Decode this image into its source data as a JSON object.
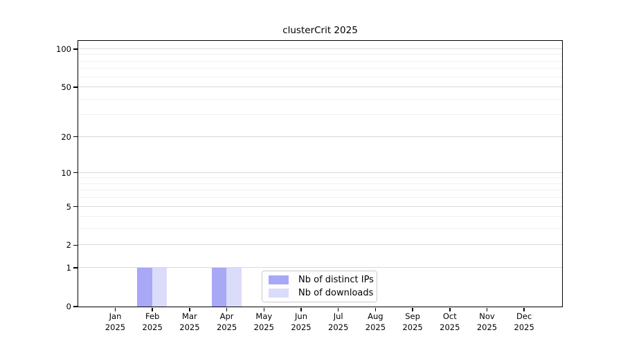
{
  "chart_data": {
    "type": "bar",
    "title": "clusterCrit 2025",
    "categories": [
      "Jan",
      "Feb",
      "Mar",
      "Apr",
      "May",
      "Jun",
      "Jul",
      "Aug",
      "Sep",
      "Oct",
      "Nov",
      "Dec"
    ],
    "year_label": "2025",
    "series": [
      {
        "name": "Nb of distinct IPs",
        "color": "#a8a8f7",
        "values": [
          0,
          1,
          0,
          1,
          0,
          0,
          0,
          0,
          0,
          0,
          0,
          0
        ]
      },
      {
        "name": "Nb of downloads",
        "color": "#dbdbfa",
        "values": [
          0,
          1,
          0,
          1,
          0,
          0,
          0,
          0,
          0,
          0,
          0,
          0
        ]
      }
    ],
    "xlabel": "",
    "ylabel": "",
    "yscale": "log1p",
    "ylim": [
      0,
      117
    ],
    "yticks_labeled": [
      0,
      1,
      2,
      5,
      10,
      20,
      50,
      100
    ],
    "gridlines_minor": [
      3,
      4,
      6,
      7,
      8,
      9,
      30,
      40,
      60,
      70,
      80,
      90
    ],
    "grid": true,
    "legend_position": "inside-bottom-center",
    "colors": {
      "grid_major": "#d9d9d9",
      "grid_minor": "#f0f0f0",
      "axis": "#000000",
      "background": "#ffffff"
    }
  }
}
